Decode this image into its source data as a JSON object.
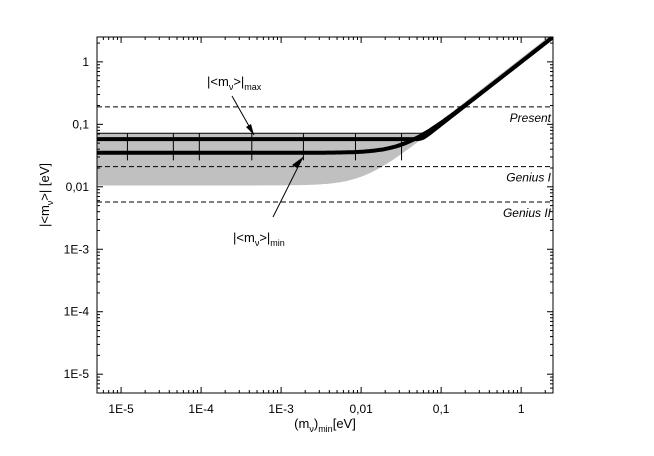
{
  "chart_data": {
    "type": "line",
    "xlabel": {
      "open": "(m",
      "sub1": "ν",
      "close": ")",
      "sub2": "min",
      "unit": "[eV]"
    },
    "ylabel": {
      "open": "|<m",
      "sub1": "ν",
      "close": ">| [eV]"
    },
    "x_scale": "log",
    "y_scale": "log",
    "xlim": [
      5e-06,
      2.5
    ],
    "ylim": [
      5e-06,
      2.5
    ],
    "x_ticks": [
      {
        "value": 1e-05,
        "label": "1E-5"
      },
      {
        "value": 0.0001,
        "label": "1E-4"
      },
      {
        "value": 0.001,
        "label": "1E-3"
      },
      {
        "value": 0.01,
        "label": "0,01"
      },
      {
        "value": 0.1,
        "label": "0,1"
      },
      {
        "value": 1,
        "label": "1"
      }
    ],
    "y_ticks": [
      {
        "value": 1e-05,
        "label": "1E-5"
      },
      {
        "value": 0.0001,
        "label": "1E-4"
      },
      {
        "value": 0.001,
        "label": "1E-3"
      },
      {
        "value": 0.01,
        "label": "0,01"
      },
      {
        "value": 0.1,
        "label": "0,1"
      },
      {
        "value": 1,
        "label": "1"
      }
    ],
    "band": {
      "lower_plateau": 0.0105,
      "upper_plateau": 0.072,
      "lower_slope": 0.5,
      "upper_slope": 0.93
    },
    "series": [
      {
        "plateau": 0.058,
        "slope": 0.95,
        "width": 4
      },
      {
        "plateau": 0.035,
        "slope": 0.5,
        "width": 4
      },
      {
        "plateau": 0.072,
        "slope": 0.95,
        "width": 1
      },
      {
        "plateau": 0.035,
        "slope": 0.5,
        "width": 1
      }
    ],
    "error_bar_x": [
      1.2e-05,
      4.5e-05,
      9.5e-05,
      0.00043,
      0.0019,
      0.0085,
      0.032
    ],
    "reference_lines": [
      {
        "y": 0.19,
        "label": "Present"
      },
      {
        "y": 0.021,
        "label": "Genius I"
      },
      {
        "y": 0.0057,
        "label": "Genius II"
      }
    ],
    "annotations": [
      {
        "main": "|<m",
        "sub1": "ν",
        "mid": ">|",
        "sub2": "max"
      },
      {
        "main": "|<m",
        "sub1": "ν",
        "mid": ">|",
        "sub2": "min"
      }
    ]
  },
  "colors": {
    "band": "#c0c0c0",
    "line": "#000000",
    "axis": "#000000",
    "background": "#ffffff"
  }
}
